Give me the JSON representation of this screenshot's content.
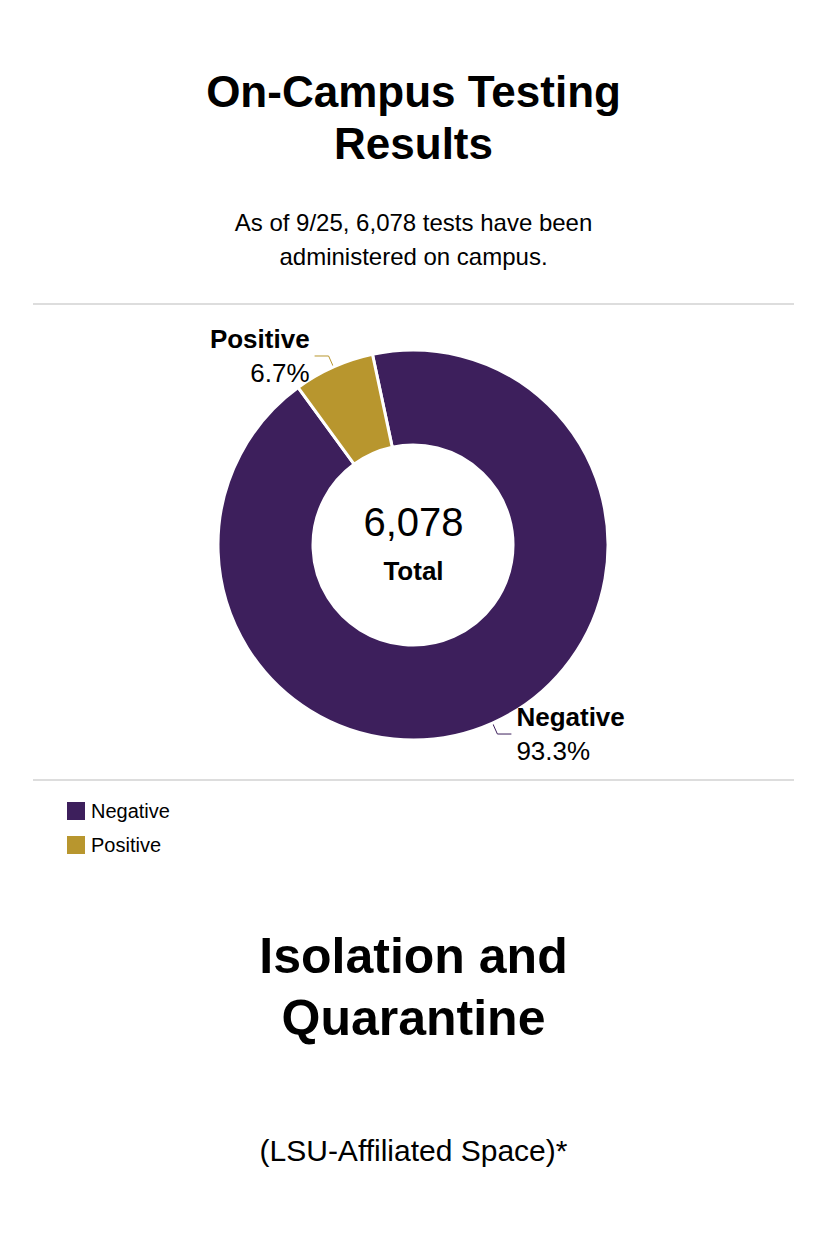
{
  "chart_data": {
    "type": "donut",
    "title": "On-Campus Testing\nResults",
    "subtitle": "As of 9/25, 6,078 tests have been\nadministered on campus.",
    "center_label": "6,078",
    "center_sublabel": "Total",
    "categories": [
      "Negative",
      "Positive"
    ],
    "values": [
      93.3,
      6.7
    ],
    "value_labels": [
      "93.3%",
      "6.7%"
    ],
    "colors": [
      "#3D1F5C",
      "#B8962E"
    ],
    "data_labels": true,
    "legend": "upper left",
    "bottom_title": "Isolation and\nQuarantine",
    "bottom_subtitle": "(LSU-Affiliated Space)*"
  }
}
